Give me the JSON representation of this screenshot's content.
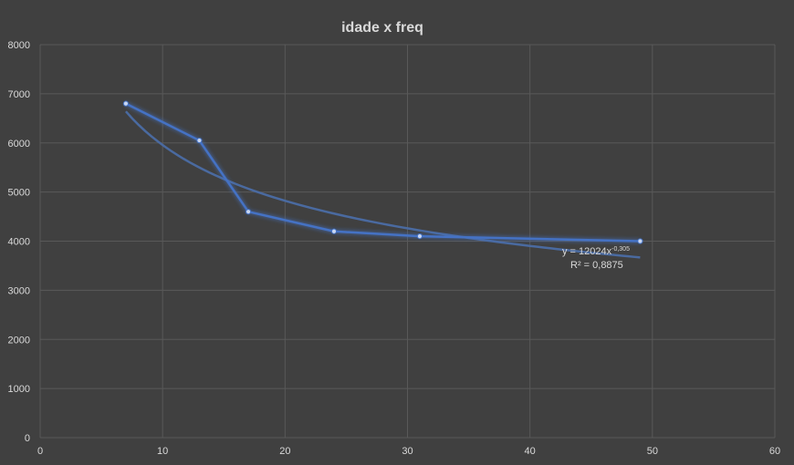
{
  "chart_data": {
    "type": "scatter",
    "title": "idade x freq",
    "xlim": [
      0,
      60
    ],
    "ylim": [
      0,
      8000
    ],
    "x_ticks": [
      0,
      10,
      20,
      30,
      40,
      50,
      60
    ],
    "y_ticks": [
      0,
      1000,
      2000,
      3000,
      4000,
      5000,
      6000,
      7000,
      8000
    ],
    "grid": true,
    "series": [
      {
        "x": [
          7,
          13,
          17,
          24,
          31,
          49
        ],
        "y": [
          6800,
          6050,
          4600,
          4200,
          4100,
          4000
        ],
        "color": "#4472c4"
      }
    ],
    "trendline": {
      "kind": "power",
      "coefficient": 12024,
      "exponent": -0.305,
      "x_range": [
        7,
        49
      ],
      "color": "#4a6aa0",
      "equation_prefix": "y = 12024x",
      "equation_exponent": "-0,305",
      "r_squared_label": "R² = 0,8875"
    }
  }
}
